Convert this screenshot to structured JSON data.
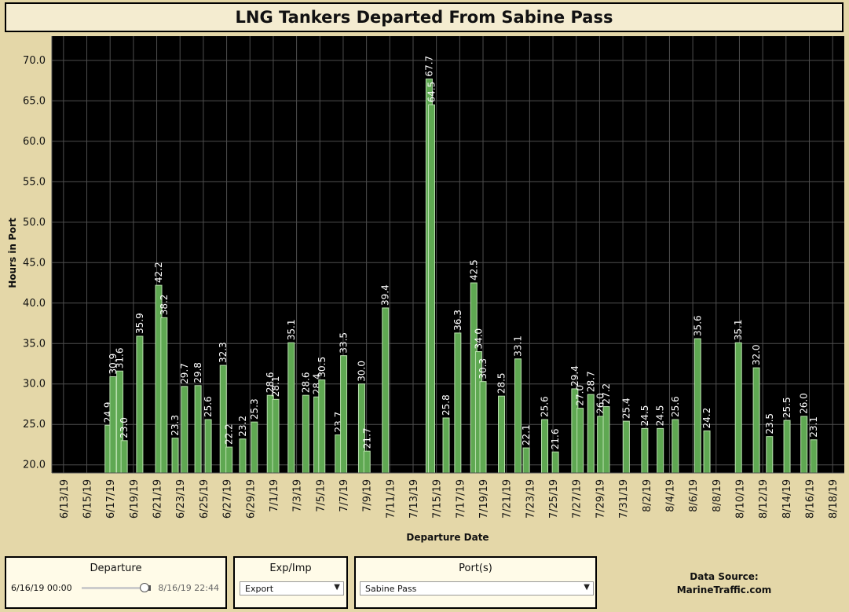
{
  "title": "LNG Tankers Departed From Sabine Pass",
  "chart_data": {
    "type": "bar",
    "xlabel": "Departure Date",
    "ylabel": "Hours in Port",
    "ylim": [
      19.0,
      73.0
    ],
    "yticks": [
      "20.0",
      "25.0",
      "30.0",
      "35.0",
      "40.0",
      "45.0",
      "50.0",
      "55.0",
      "60.0",
      "65.0",
      "70.0"
    ],
    "x_start": "6/12/19",
    "x_end": "8/19/19",
    "xticks": [
      "6/13/19",
      "6/15/19",
      "6/17/19",
      "6/19/19",
      "6/21/19",
      "6/23/19",
      "6/25/19",
      "6/27/19",
      "6/29/19",
      "7/1/19",
      "7/3/19",
      "7/5/19",
      "7/7/19",
      "7/9/19",
      "7/11/19",
      "7/13/19",
      "7/15/19",
      "7/17/19",
      "7/19/19",
      "7/21/19",
      "7/23/19",
      "7/25/19",
      "7/27/19",
      "7/29/19",
      "7/31/19",
      "8/2/19",
      "8/4/19",
      "8/6/19",
      "8/8/19",
      "8/10/19",
      "8/12/19",
      "8/14/19",
      "8/16/19",
      "8/18/19"
    ],
    "points": [
      {
        "x": "6/16/19 20:00",
        "y": 24.9,
        "label": "24.9"
      },
      {
        "x": "6/17/19 06:00",
        "y": 30.9,
        "label": "30.9"
      },
      {
        "x": "6/17/19 20:00",
        "y": 31.6,
        "label": "31.6"
      },
      {
        "x": "6/18/19 05:00",
        "y": 23.0,
        "label": "23.0"
      },
      {
        "x": "6/19/19 13:00",
        "y": 35.9,
        "label": "35.9"
      },
      {
        "x": "6/21/19 04:00",
        "y": 42.2,
        "label": "42.2"
      },
      {
        "x": "6/21/19 15:00",
        "y": 38.2,
        "label": "38.2"
      },
      {
        "x": "6/22/19 14:00",
        "y": 23.3,
        "label": "23.3"
      },
      {
        "x": "6/23/19 09:00",
        "y": 29.7,
        "label": "29.7"
      },
      {
        "x": "6/24/19 13:00",
        "y": 29.8,
        "label": "29.8"
      },
      {
        "x": "6/25/19 10:00",
        "y": 25.6,
        "label": "25.6"
      },
      {
        "x": "6/26/19 17:00",
        "y": 32.3,
        "label": "32.3"
      },
      {
        "x": "6/27/19 05:00",
        "y": 22.2,
        "label": "22.2"
      },
      {
        "x": "6/28/19 09:00",
        "y": 23.2,
        "label": "23.2"
      },
      {
        "x": "6/29/19 09:00",
        "y": 25.3,
        "label": "25.3"
      },
      {
        "x": "6/30/19 18:00",
        "y": 28.6,
        "label": "28.6"
      },
      {
        "x": "7/1/19 05:00",
        "y": 28.1,
        "label": "28.1"
      },
      {
        "x": "7/2/19 13:00",
        "y": 35.1,
        "label": "35.1"
      },
      {
        "x": "7/3/19 19:00",
        "y": 28.6,
        "label": "28.6"
      },
      {
        "x": "7/4/19 18:00",
        "y": 28.4,
        "label": "28.4"
      },
      {
        "x": "7/5/19 04:00",
        "y": 30.5,
        "label": "30.5"
      },
      {
        "x": "7/6/19 14:00",
        "y": 23.7,
        "label": "23.7"
      },
      {
        "x": "7/7/19 01:00",
        "y": 33.5,
        "label": "33.5"
      },
      {
        "x": "7/8/19 14:00",
        "y": 30.0,
        "label": "30.0"
      },
      {
        "x": "7/9/19 01:00",
        "y": 21.7,
        "label": "21.7"
      },
      {
        "x": "7/10/19 15:00",
        "y": 39.4,
        "label": "39.4"
      },
      {
        "x": "7/14/19 09:00",
        "y": 67.7,
        "label": "67.7"
      },
      {
        "x": "7/14/19 14:00",
        "y": 64.5,
        "label": "64.5"
      },
      {
        "x": "7/15/19 20:00",
        "y": 25.8,
        "label": "25.8"
      },
      {
        "x": "7/16/19 20:00",
        "y": 36.3,
        "label": "36.3"
      },
      {
        "x": "7/18/19 05:00",
        "y": 42.5,
        "label": "42.5"
      },
      {
        "x": "7/18/19 15:00",
        "y": 34.0,
        "label": "34.0"
      },
      {
        "x": "7/19/19 00:00",
        "y": 30.3,
        "label": "30.3"
      },
      {
        "x": "7/20/19 14:00",
        "y": 28.5,
        "label": "28.5"
      },
      {
        "x": "7/22/19 00:00",
        "y": 33.1,
        "label": "33.1"
      },
      {
        "x": "7/22/19 17:00",
        "y": 22.1,
        "label": "22.1"
      },
      {
        "x": "7/24/19 07:00",
        "y": 25.6,
        "label": "25.6"
      },
      {
        "x": "7/25/19 05:00",
        "y": 21.6,
        "label": "21.6"
      },
      {
        "x": "7/26/19 21:00",
        "y": 29.4,
        "label": "29.4"
      },
      {
        "x": "7/27/19 08:00",
        "y": 27.0,
        "label": "27.0"
      },
      {
        "x": "7/28/19 06:00",
        "y": 28.7,
        "label": "28.7"
      },
      {
        "x": "7/29/19 02:00",
        "y": 26.0,
        "label": "26.0"
      },
      {
        "x": "7/29/19 14:00",
        "y": 27.2,
        "label": "27.2"
      },
      {
        "x": "7/31/19 07:00",
        "y": 25.4,
        "label": "25.4"
      },
      {
        "x": "8/1/19 21:00",
        "y": 24.5,
        "label": "24.5"
      },
      {
        "x": "8/3/19 05:00",
        "y": 24.5,
        "label": "24.5"
      },
      {
        "x": "8/4/19 12:00",
        "y": 25.6,
        "label": "25.6"
      },
      {
        "x": "8/6/19 10:00",
        "y": 35.6,
        "label": "35.6"
      },
      {
        "x": "8/7/19 05:00",
        "y": 24.2,
        "label": "24.2"
      },
      {
        "x": "8/9/19 22:00",
        "y": 35.1,
        "label": "35.1"
      },
      {
        "x": "8/11/19 11:00",
        "y": 32.0,
        "label": "32.0"
      },
      {
        "x": "8/12/19 14:00",
        "y": 23.5,
        "label": "23.5"
      },
      {
        "x": "8/14/19 02:00",
        "y": 25.5,
        "label": "25.5"
      },
      {
        "x": "8/15/19 13:00",
        "y": 26.0,
        "label": "26.0"
      },
      {
        "x": "8/16/19 09:00",
        "y": 23.1,
        "label": "23.1"
      }
    ],
    "colors": {
      "plot_bg": "#000000",
      "bar_fill": "#5fa852",
      "bar_stroke": "#b9e0ae",
      "grid": "#4e4e4e",
      "label": "#ffffff",
      "page_bg": "#e4d7a8"
    }
  },
  "filters": {
    "departure": {
      "title": "Departure",
      "start": "6/16/19 00:00",
      "end": "8/16/19 22:44"
    },
    "exp_imp": {
      "title": "Exp/Imp",
      "value": "Export"
    },
    "ports": {
      "title": "Port(s)",
      "value": "Sabine Pass"
    }
  },
  "source": {
    "line1": "Data Source:",
    "line2": "MarineTraffic.com"
  }
}
